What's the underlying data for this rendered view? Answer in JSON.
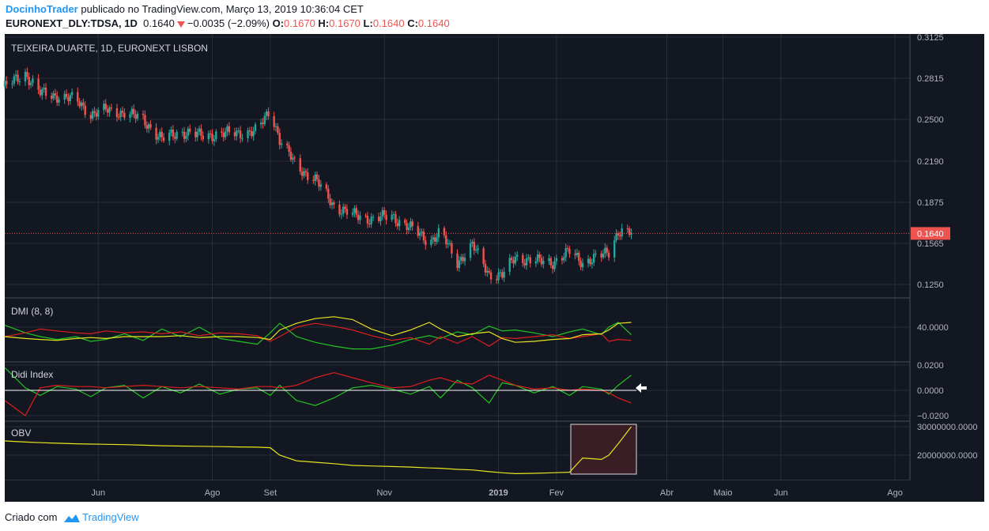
{
  "header": {
    "author": "DocinhoTrader",
    "published_text": "publicado no TradingView.com, Março 13, 2019 10:36:04 CET",
    "symbol_interval": "EURONEXT_DLY:TDSA, 1D",
    "last": "0.1640",
    "change": "−0.0035 (−2.09%)",
    "o_label": "O:",
    "o_value": "0.1670",
    "h_label": "H:",
    "h_value": "0.1670",
    "l_label": "L:",
    "l_value": "0.1640",
    "c_label": "C:",
    "c_value": "0.1640"
  },
  "footer": {
    "created_with": "Criado com",
    "brand": "TradingView"
  },
  "colors": {
    "background": "#131722",
    "grid": "#2a2e39",
    "up": "#26a69a",
    "down": "#ef5350",
    "price_tag": "#ef5350",
    "dmi_plus": "#22c422",
    "dmi_minus": "#e01e1e",
    "adx": "#e6e61e",
    "obv": "#e6e61e",
    "highlight_fill": "#3a1e26",
    "highlight_border": "#d9d9d9"
  },
  "chart_data": [
    {
      "type": "candlestick",
      "title": "TEIXEIRA DUARTE, 1D, EURONEXT LISBON",
      "price_axis_ticks": [
        "0.3125",
        "0.2815",
        "0.2500",
        "0.2190",
        "0.1875",
        "0.1565",
        "0.1250"
      ],
      "last_price_label": "0.1640",
      "ylim": [
        0.1125,
        0.3125
      ],
      "time_axis_ticks": [
        "Jun",
        "Ago",
        "Set",
        "Nov",
        "2019",
        "Fev",
        "Abr",
        "Maio",
        "Jun",
        "Ago"
      ],
      "x_range": [
        "2018-04-12",
        "2019-08-09"
      ],
      "close_path": [
        {
          "date": "2018-04-12",
          "close": 0.275
        },
        {
          "date": "2018-04-23",
          "close": 0.285
        },
        {
          "date": "2018-05-01",
          "close": 0.27
        },
        {
          "date": "2018-05-10",
          "close": 0.268
        },
        {
          "date": "2018-05-20",
          "close": 0.265
        },
        {
          "date": "2018-05-28",
          "close": 0.254
        },
        {
          "date": "2018-06-05",
          "close": 0.257
        },
        {
          "date": "2018-06-15",
          "close": 0.255
        },
        {
          "date": "2018-06-25",
          "close": 0.25
        },
        {
          "date": "2018-07-05",
          "close": 0.235
        },
        {
          "date": "2018-07-15",
          "close": 0.241
        },
        {
          "date": "2018-07-25",
          "close": 0.238
        },
        {
          "date": "2018-08-05",
          "close": 0.239
        },
        {
          "date": "2018-08-15",
          "close": 0.24
        },
        {
          "date": "2018-08-25",
          "close": 0.241
        },
        {
          "date": "2018-09-01",
          "close": 0.258
        },
        {
          "date": "2018-09-06",
          "close": 0.235
        },
        {
          "date": "2018-09-15",
          "close": 0.215
        },
        {
          "date": "2018-09-25",
          "close": 0.205
        },
        {
          "date": "2018-10-05",
          "close": 0.185
        },
        {
          "date": "2018-10-15",
          "close": 0.178
        },
        {
          "date": "2018-10-25",
          "close": 0.175
        },
        {
          "date": "2018-11-05",
          "close": 0.177
        },
        {
          "date": "2018-11-15",
          "close": 0.168
        },
        {
          "date": "2018-11-25",
          "close": 0.158
        },
        {
          "date": "2018-12-01",
          "close": 0.165
        },
        {
          "date": "2018-12-10",
          "close": 0.142
        },
        {
          "date": "2018-12-18",
          "close": 0.155
        },
        {
          "date": "2018-12-27",
          "close": 0.133
        },
        {
          "date": "2019-01-03",
          "close": 0.132
        },
        {
          "date": "2019-01-10",
          "close": 0.146
        },
        {
          "date": "2019-01-20",
          "close": 0.143
        },
        {
          "date": "2019-01-30",
          "close": 0.142
        },
        {
          "date": "2019-02-08",
          "close": 0.15
        },
        {
          "date": "2019-02-15",
          "close": 0.142
        },
        {
          "date": "2019-02-25",
          "close": 0.147
        },
        {
          "date": "2019-03-01",
          "close": 0.15
        },
        {
          "date": "2019-03-06",
          "close": 0.166
        },
        {
          "date": "2019-03-13",
          "close": 0.164
        }
      ]
    },
    {
      "type": "line",
      "title": "DMI (8, 8)",
      "axis_ticks": [
        "40.0000"
      ],
      "series": [
        {
          "key": "plus",
          "color": "#22c422",
          "values": [
            42,
            34,
            30,
            27,
            30,
            25,
            27,
            33,
            26,
            38,
            30,
            40,
            28,
            25,
            22,
            34,
            44,
            30,
            24,
            20,
            17,
            17,
            21,
            27,
            31,
            28,
            35,
            32,
            41,
            36,
            37,
            34,
            30,
            35,
            38,
            32,
            40,
            45,
            32
          ]
        },
        {
          "key": "minus",
          "color": "#e01e1e",
          "values": [
            30,
            34,
            38,
            36,
            34,
            33,
            36,
            34,
            35,
            33,
            35,
            31,
            34,
            33,
            31,
            25,
            30,
            40,
            44,
            41,
            37,
            31,
            26,
            29,
            22,
            30,
            23,
            30,
            20,
            29,
            28,
            30,
            32,
            28,
            30,
            33,
            25,
            27,
            26
          ]
        },
        {
          "key": "adx",
          "color": "#e6e61e",
          "values": [
            30,
            28,
            27,
            26,
            28,
            29,
            28,
            30,
            30,
            30,
            31,
            29,
            30,
            30,
            29,
            27,
            37,
            44,
            49,
            51,
            48,
            38,
            31,
            37,
            45,
            38,
            30,
            33,
            35,
            28,
            24,
            25,
            27,
            28,
            32,
            33,
            37,
            44,
            45
          ]
        }
      ]
    },
    {
      "type": "line",
      "title": "Didi Index",
      "axis_ticks": [
        "0.0200",
        "0.0000",
        "−0.0200"
      ],
      "series": [
        {
          "key": "green",
          "color": "#22c422",
          "values": [
            0.018,
            0.002,
            -0.004,
            0.003,
            0.001,
            -0.005,
            0.002,
            0.004,
            -0.006,
            0.003,
            -0.002,
            0.005,
            -0.003,
            0.001,
            0.002,
            -0.004,
            0.004,
            -0.008,
            -0.012,
            -0.006,
            0.002,
            0.004,
            0.001,
            -0.003,
            0.003,
            -0.006,
            0.008,
            0.002,
            -0.01,
            0.006,
            0.004,
            -0.002,
            0.003,
            -0.004,
            0.003,
            0.001,
            -0.003,
            0.004,
            0.012
          ]
        },
        {
          "key": "red",
          "color": "#e01e1e",
          "values": [
            -0.008,
            -0.02,
            0.002,
            0.004,
            0.003,
            0.003,
            0.002,
            0.003,
            0.004,
            0.003,
            0.002,
            0.003,
            0.002,
            0.001,
            0.003,
            0.003,
            0.002,
            0.004,
            0.01,
            0.014,
            0.01,
            0.006,
            0.002,
            0.003,
            0.008,
            0.01,
            0.006,
            0.005,
            0.012,
            0.008,
            0.004,
            0.001,
            0.002,
            0.0,
            0.001,
            0.0,
            -0.002,
            -0.006,
            -0.01
          ]
        }
      ]
    },
    {
      "type": "line",
      "title": "OBV",
      "axis_ticks": [
        "30000000.0000",
        "20000000.0000"
      ],
      "series": [
        {
          "key": "obv",
          "color": "#e6e61e",
          "values": [
            25,
            24.6,
            24.4,
            24.2,
            24,
            23.9,
            23.8,
            23.7,
            23.5,
            23.3,
            23.2,
            23.1,
            23.0,
            22.9,
            22.8,
            22.6,
            20,
            18,
            17.5,
            17,
            16.4,
            16.2,
            16,
            15.8,
            15.5,
            15.4,
            15,
            14.8,
            14.2,
            13.8,
            13.5,
            13.6,
            13.8,
            14,
            19,
            18.5,
            20,
            24,
            30
          ]
        }
      ]
    }
  ],
  "annotations": {
    "arrow_icon": "left-arrow-icon"
  }
}
